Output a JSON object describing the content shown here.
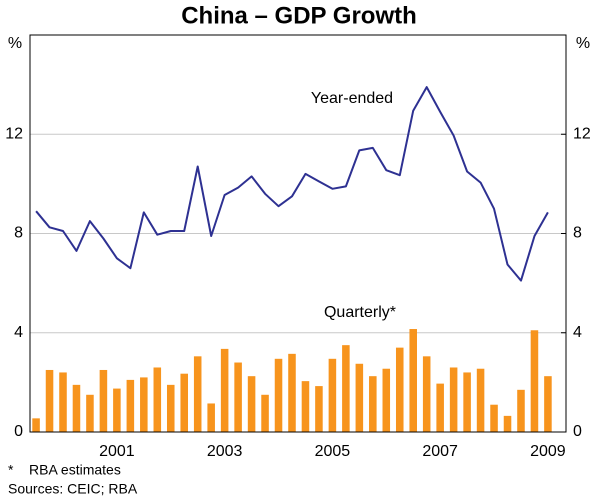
{
  "chart_data": {
    "type": "combo",
    "title": "China – GDP Growth",
    "ylabel": "%",
    "y2label": "%",
    "categories": [
      null,
      null,
      null,
      null,
      null,
      null,
      "2001",
      null,
      null,
      null,
      null,
      null,
      null,
      null,
      "2003",
      null,
      null,
      null,
      null,
      null,
      null,
      null,
      "2005",
      null,
      null,
      null,
      null,
      null,
      null,
      null,
      "2007",
      null,
      null,
      null,
      null,
      null,
      null,
      null,
      "2009"
    ],
    "series": [
      {
        "name": "Year-ended",
        "type": "line",
        "color": "#2e3192",
        "values": [
          8.9,
          8.25,
          8.1,
          7.3,
          8.5,
          7.8,
          7.0,
          6.6,
          8.85,
          7.95,
          8.1,
          8.1,
          10.7,
          7.9,
          9.55,
          9.85,
          10.3,
          9.6,
          9.1,
          9.5,
          10.4,
          10.1,
          9.8,
          9.9,
          11.35,
          11.45,
          10.55,
          10.35,
          12.95,
          13.9,
          12.9,
          11.95,
          10.5,
          10.05,
          9.0,
          6.75,
          6.1,
          7.9,
          8.85
        ]
      },
      {
        "name": "Quarterly*",
        "type": "bar",
        "color": "#f7941d",
        "values": [
          0.55,
          2.5,
          2.4,
          1.9,
          1.5,
          2.5,
          1.75,
          2.1,
          2.2,
          2.6,
          1.9,
          2.35,
          3.05,
          1.15,
          3.35,
          2.8,
          2.25,
          1.5,
          2.95,
          3.15,
          2.05,
          1.85,
          2.95,
          3.5,
          2.75,
          2.25,
          2.55,
          3.4,
          4.15,
          3.05,
          1.95,
          2.6,
          2.4,
          2.55,
          1.1,
          0.65,
          1.7,
          4.1,
          2.25
        ]
      }
    ],
    "ylim": [
      0,
      16
    ],
    "yticks": [
      0,
      4,
      8,
      12
    ],
    "y2lim": [
      0,
      16
    ],
    "y2ticks": [
      0,
      4,
      8,
      12
    ],
    "grid": true,
    "notes": [
      "*    RBA estimates",
      "Sources: CEIC; RBA"
    ]
  }
}
